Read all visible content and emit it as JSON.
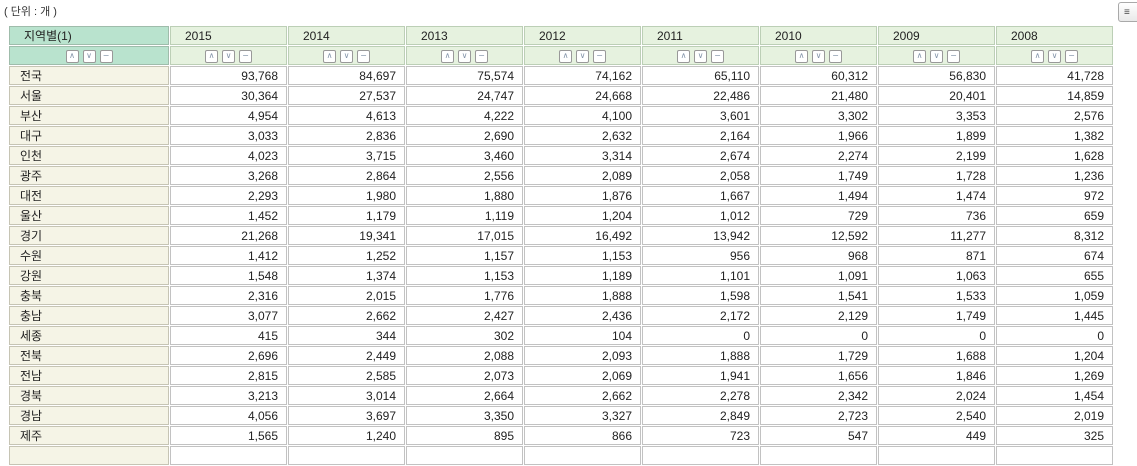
{
  "unit_label": "( 단위 : 개 )",
  "corner_button": {
    "icon_char": "≡"
  },
  "colors": {
    "mint_header": "#b9e3ce",
    "pale_green_header": "#e6f2df",
    "ivory_row_header": "#f5f4e6",
    "cell_border": "#c2c2c2",
    "mint_border": "#9fbcab",
    "pale_border": "#bccfb6"
  },
  "sort_icons": {
    "asc": "∧",
    "desc": "∨",
    "clear": "−"
  },
  "table": {
    "dimension_header": "지역별(1)",
    "years": [
      "2015",
      "2014",
      "2013",
      "2012",
      "2011",
      "2010",
      "2009",
      "2008"
    ],
    "rows": [
      {
        "region": "전국",
        "values": [
          "93,768",
          "84,697",
          "75,574",
          "74,162",
          "65,110",
          "60,312",
          "56,830",
          "41,728"
        ]
      },
      {
        "region": "서울",
        "values": [
          "30,364",
          "27,537",
          "24,747",
          "24,668",
          "22,486",
          "21,480",
          "20,401",
          "14,859"
        ]
      },
      {
        "region": "부산",
        "values": [
          "4,954",
          "4,613",
          "4,222",
          "4,100",
          "3,601",
          "3,302",
          "3,353",
          "2,576"
        ]
      },
      {
        "region": "대구",
        "values": [
          "3,033",
          "2,836",
          "2,690",
          "2,632",
          "2,164",
          "1,966",
          "1,899",
          "1,382"
        ]
      },
      {
        "region": "인천",
        "values": [
          "4,023",
          "3,715",
          "3,460",
          "3,314",
          "2,674",
          "2,274",
          "2,199",
          "1,628"
        ]
      },
      {
        "region": "광주",
        "values": [
          "3,268",
          "2,864",
          "2,556",
          "2,089",
          "2,058",
          "1,749",
          "1,728",
          "1,236"
        ]
      },
      {
        "region": "대전",
        "values": [
          "2,293",
          "1,980",
          "1,880",
          "1,876",
          "1,667",
          "1,494",
          "1,474",
          "972"
        ]
      },
      {
        "region": "울산",
        "values": [
          "1,452",
          "1,179",
          "1,119",
          "1,204",
          "1,012",
          "729",
          "736",
          "659"
        ]
      },
      {
        "region": "경기",
        "values": [
          "21,268",
          "19,341",
          "17,015",
          "16,492",
          "13,942",
          "12,592",
          "11,277",
          "8,312"
        ]
      },
      {
        "region": "수원",
        "values": [
          "1,412",
          "1,252",
          "1,157",
          "1,153",
          "956",
          "968",
          "871",
          "674"
        ]
      },
      {
        "region": "강원",
        "values": [
          "1,548",
          "1,374",
          "1,153",
          "1,189",
          "1,101",
          "1,091",
          "1,063",
          "655"
        ]
      },
      {
        "region": "충북",
        "values": [
          "2,316",
          "2,015",
          "1,776",
          "1,888",
          "1,598",
          "1,541",
          "1,533",
          "1,059"
        ]
      },
      {
        "region": "충남",
        "values": [
          "3,077",
          "2,662",
          "2,427",
          "2,436",
          "2,172",
          "2,129",
          "1,749",
          "1,445"
        ]
      },
      {
        "region": "세종",
        "values": [
          "415",
          "344",
          "302",
          "104",
          "0",
          "0",
          "0",
          "0"
        ]
      },
      {
        "region": "전북",
        "values": [
          "2,696",
          "2,449",
          "2,088",
          "2,093",
          "1,888",
          "1,729",
          "1,688",
          "1,204"
        ]
      },
      {
        "region": "전남",
        "values": [
          "2,815",
          "2,585",
          "2,073",
          "2,069",
          "1,941",
          "1,656",
          "1,846",
          "1,269"
        ]
      },
      {
        "region": "경북",
        "values": [
          "3,213",
          "3,014",
          "2,664",
          "2,662",
          "2,278",
          "2,342",
          "2,024",
          "1,454"
        ]
      },
      {
        "region": "경남",
        "values": [
          "4,056",
          "3,697",
          "3,350",
          "3,327",
          "2,849",
          "2,723",
          "2,540",
          "2,019"
        ]
      },
      {
        "region": "제주",
        "values": [
          "1,565",
          "1,240",
          "895",
          "866",
          "723",
          "547",
          "449",
          "325"
        ]
      }
    ]
  }
}
